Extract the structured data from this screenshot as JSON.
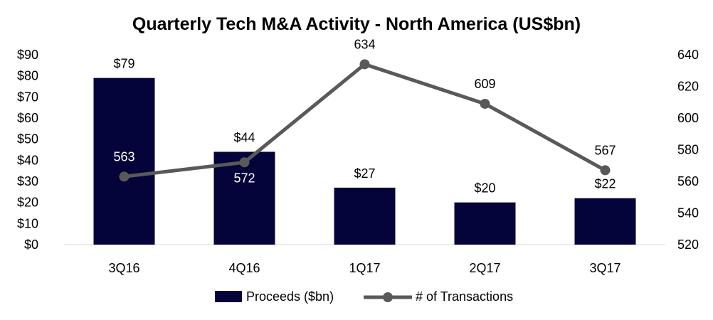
{
  "chart_data": {
    "type": "bar+line",
    "title": "Quarterly Tech M&A Activity - North America (US$bn)",
    "categories": [
      "3Q16",
      "4Q16",
      "1Q17",
      "2Q17",
      "3Q17"
    ],
    "series": [
      {
        "name": "Proceeds ($bn)",
        "kind": "bar",
        "axis": "left",
        "values": [
          79,
          44,
          27,
          20,
          22
        ],
        "labels": [
          "$79",
          "$44",
          "$27",
          "$20",
          "$22"
        ],
        "color": "#04043a"
      },
      {
        "name": "# of Transactions",
        "kind": "line",
        "axis": "right",
        "values": [
          563,
          572,
          634,
          609,
          567
        ],
        "labels": [
          "563",
          "572",
          "634",
          "609",
          "567"
        ],
        "color": "#595959"
      }
    ],
    "y_left": {
      "min": 0,
      "max": 90,
      "step": 10,
      "tick_labels": [
        "$0",
        "$10",
        "$20",
        "$30",
        "$40",
        "$50",
        "$60",
        "$70",
        "$80",
        "$90"
      ]
    },
    "y_right": {
      "min": 520,
      "max": 640,
      "step": 20,
      "tick_labels": [
        "520",
        "540",
        "560",
        "580",
        "600",
        "620",
        "640"
      ]
    },
    "grid": false,
    "legend_position": "bottom"
  }
}
